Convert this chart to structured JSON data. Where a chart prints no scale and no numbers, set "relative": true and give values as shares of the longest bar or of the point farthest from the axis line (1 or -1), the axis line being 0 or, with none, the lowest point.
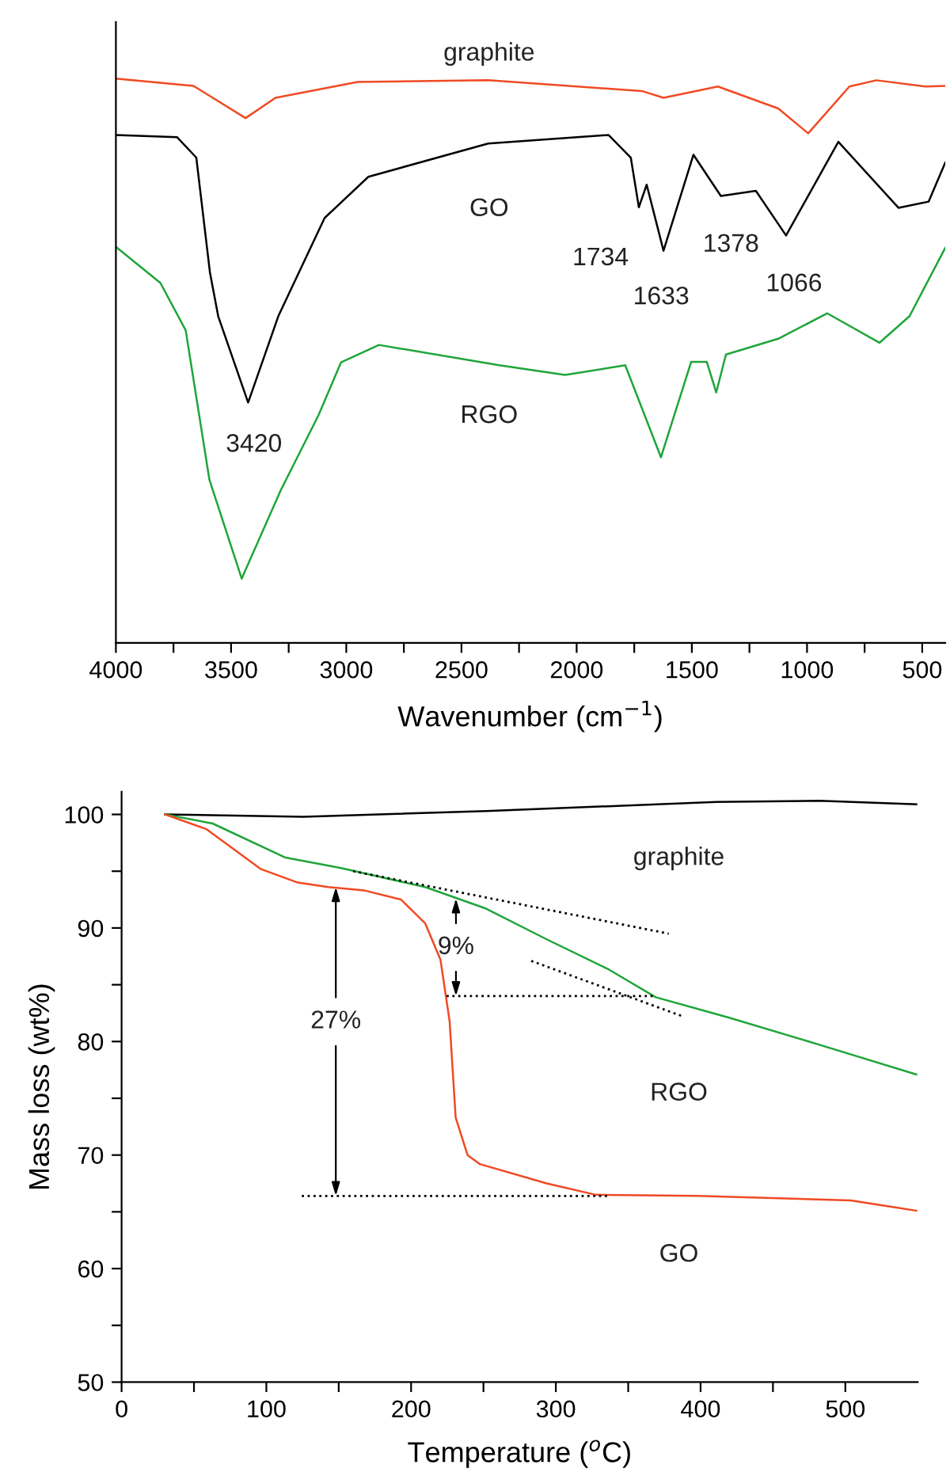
{
  "chart_data": [
    {
      "type": "line",
      "relative": true,
      "xlabel": "Wavenumber (cm$^{−1}$)",
      "xlim": [
        4000,
        400
      ],
      "xticks": [
        4000,
        {
          "value": 3750,
          "label": null
        },
        3500,
        {
          "value": 3250,
          "label": null
        },
        3000,
        {
          "value": 2750,
          "label": null
        },
        2500,
        {
          "value": 2250,
          "label": null
        },
        2000,
        {
          "value": 1750,
          "label": null
        },
        1500,
        {
          "value": 1250,
          "label": null
        },
        1000,
        {
          "value": 750,
          "label": null
        },
        500
      ],
      "series": [
        {
          "name": "graphite",
          "color": "#f04a23",
          "x": [
            4000,
            3663,
            3437,
            3307,
            2951,
            2384,
            1717,
            1623,
            1387,
            1125,
            995,
            816,
            699,
            486,
            400
          ],
          "values": [
            1.0,
            0.987,
            0.93,
            0.966,
            0.994,
            0.997,
            0.978,
            0.966,
            0.986,
            0.947,
            0.903,
            0.986,
            0.997,
            0.986,
            0.987
          ]
        },
        {
          "name": "GO",
          "color": "#000000",
          "x": [
            4000,
            3734,
            3651,
            3592,
            3556,
            3426,
            3295,
            3094,
            2904,
            2384,
            1861,
            1765,
            1730,
            1696,
            1623,
            1493,
            1374,
            1222,
            1091,
            864,
            603,
            472,
            400
          ],
          "values": [
            0.9,
            0.896,
            0.86,
            0.657,
            0.579,
            0.426,
            0.579,
            0.753,
            0.826,
            0.885,
            0.9,
            0.86,
            0.772,
            0.812,
            0.695,
            0.865,
            0.792,
            0.801,
            0.722,
            0.888,
            0.771,
            0.782,
            0.851
          ]
        },
        {
          "name": "RGO",
          "color": "#1fa53a",
          "x": [
            4000,
            3807,
            3697,
            3594,
            3454,
            3285,
            3120,
            3023,
            2858,
            2336,
            2050,
            1789,
            1634,
            1503,
            1435,
            1394,
            1352,
            1125,
            912,
            685,
            555,
            400
          ],
          "values": [
            0.702,
            0.638,
            0.554,
            0.289,
            0.114,
            0.27,
            0.404,
            0.497,
            0.528,
            0.492,
            0.475,
            0.492,
            0.329,
            0.498,
            0.498,
            0.444,
            0.511,
            0.539,
            0.584,
            0.532,
            0.579,
            0.7
          ]
        }
      ],
      "annotations": [
        {
          "text": "3420",
          "x": 3420,
          "y": 0.426
        },
        {
          "text": "1734",
          "x": 1734,
          "y": 0.772
        },
        {
          "text": "1633",
          "x": 1633,
          "y": 0.695
        },
        {
          "text": "1378",
          "x": 1378,
          "y": 0.792
        },
        {
          "text": "1066",
          "x": 1066,
          "y": 0.722
        }
      ]
    },
    {
      "type": "line",
      "xlabel": "Temperature ($^{o}$C)",
      "ylabel": "Mass loss (wt%)",
      "xlim": [
        0,
        550
      ],
      "ylim": [
        50,
        102
      ],
      "xticks": [
        0,
        {
          "value": 50,
          "label": null
        },
        100,
        {
          "value": 150,
          "label": null
        },
        200,
        {
          "value": 250,
          "label": null
        },
        300,
        {
          "value": 350,
          "label": null
        },
        400,
        {
          "value": 450,
          "label": null
        },
        500
      ],
      "yticks": [
        50,
        {
          "value": 55,
          "label": null
        },
        60,
        {
          "value": 65,
          "label": null
        },
        70,
        {
          "value": 75,
          "label": null
        },
        80,
        {
          "value": 85,
          "label": null
        },
        90,
        {
          "value": 95,
          "label": null
        },
        100
      ],
      "series": [
        {
          "name": "graphite",
          "color": "#000000",
          "x": [
            30,
            125.5,
            252,
            411,
            482,
            549
          ],
          "values": [
            100,
            99.8,
            100.3,
            101.1,
            101.2,
            100.9
          ]
        },
        {
          "name": "RGO",
          "color": "#1fa53a",
          "x": [
            30,
            62.9,
            113.3,
            151,
            209.8,
            251.9,
            293.7,
            335.8,
            369,
            419.8,
            482.5,
            549
          ],
          "values": [
            100,
            99.2,
            96.2,
            95.3,
            93.6,
            91.7,
            89.0,
            86.4,
            83.9,
            82.1,
            79.7,
            77.1
          ]
        },
        {
          "name": "GO",
          "color": "#f04a23",
          "x": [
            30,
            58.7,
            96,
            121.7,
            142.7,
            167.9,
            193,
            209.8,
            220.3,
            226.6,
            230.8,
            239,
            247.6,
            293.7,
            327.5,
            398,
            503.8,
            549
          ],
          "values": [
            100,
            98.7,
            95.2,
            94.0,
            93.6,
            93.3,
            92.5,
            90.4,
            87.2,
            81.8,
            73.3,
            70.0,
            69.2,
            67.5,
            66.5,
            66.4,
            66.0,
            65.1
          ]
        },
        {
          "color": "#000000",
          "line_style": "dotted",
          "x": [
            160,
            378
          ],
          "values": [
            95.0,
            89.5
          ]
        },
        {
          "color": "#000000",
          "line_style": "dotted",
          "x": [
            283,
            388
          ],
          "values": [
            87.1,
            82.2
          ]
        },
        {
          "color": "#000000",
          "line_style": "dotted",
          "x": [
            224.5,
            369
          ],
          "values": [
            84.0,
            84.0
          ]
        },
        {
          "color": "#000000",
          "line_style": "dotted",
          "x": [
            124.5,
            336
          ],
          "values": [
            66.4,
            66.4
          ]
        }
      ],
      "annotations": [
        {
          "text": "27%",
          "x": 148,
          "y": 93.6
        },
        {
          "text": "9%",
          "x": 231,
          "y": 92.6
        }
      ]
    }
  ]
}
